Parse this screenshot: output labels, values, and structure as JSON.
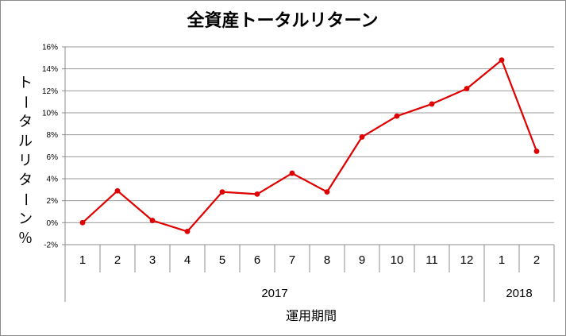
{
  "chart_data": {
    "type": "line",
    "title": "全資産トータルリターン",
    "ylabel": "トータルリターン％",
    "xlabel": "運用期間",
    "ylim": [
      -0.02,
      0.16
    ],
    "ytick_step": 0.02,
    "grid": true,
    "legend": "none",
    "categories": [
      "1",
      "2",
      "3",
      "4",
      "5",
      "6",
      "7",
      "8",
      "9",
      "10",
      "11",
      "12",
      "1",
      "2"
    ],
    "year_groups": [
      {
        "label": "2017",
        "count": 12
      },
      {
        "label": "2018",
        "count": 2
      }
    ],
    "series": [
      {
        "color": "#e00000",
        "values": [
          0.0,
          0.029,
          0.002,
          -0.008,
          0.028,
          0.026,
          0.045,
          0.028,
          0.078,
          0.097,
          0.108,
          0.122,
          0.148,
          0.065
        ]
      }
    ]
  }
}
